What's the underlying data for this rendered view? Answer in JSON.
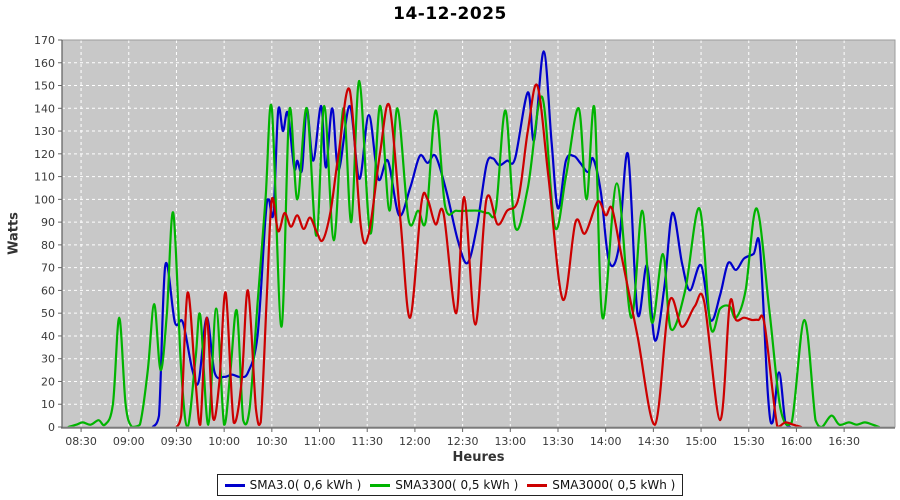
{
  "title": "14-12-2025",
  "axes": {
    "y_label": "Watts",
    "x_label": "Heures",
    "y_min": 0,
    "y_max": 170,
    "y_step": 10,
    "x_ticks": [
      "08:30",
      "09:00",
      "09:30",
      "10:00",
      "10:30",
      "11:00",
      "11:30",
      "12:00",
      "12:30",
      "13:00",
      "13:30",
      "14:00",
      "14:30",
      "15:00",
      "15:30",
      "16:00",
      "16:30"
    ],
    "x_start": "08:18",
    "x_end": "17:02"
  },
  "style": {
    "plot_bg": "#c8c8c8",
    "grid_color": "#ffffff",
    "axis_color": "#666666",
    "frame_color": "#9b9b9b",
    "tick_label_color": "#3a3a3a"
  },
  "chart_data": {
    "type": "line",
    "title": "14-12-2025",
    "xlabel": "Heures",
    "ylabel": "Watts",
    "ylim": [
      0,
      170
    ],
    "x_unit": "time_hh_mm",
    "grid": true,
    "legend_position": "bottom",
    "series": [
      {
        "key": "sma30",
        "name": "SMA3.0( 0,6 kWh )",
        "color": "#0000cc",
        "points": [
          [
            "09:15",
            0
          ],
          [
            "09:19",
            5
          ],
          [
            "09:23",
            71
          ],
          [
            "09:29",
            46
          ],
          [
            "09:34",
            46
          ],
          [
            "09:40",
            25
          ],
          [
            "09:44",
            20
          ],
          [
            "09:49",
            48
          ],
          [
            "09:54",
            24
          ],
          [
            "10:00",
            22
          ],
          [
            "10:05",
            23
          ],
          [
            "10:10",
            22
          ],
          [
            "10:15",
            24
          ],
          [
            "10:21",
            40
          ],
          [
            "10:26",
            92
          ],
          [
            "10:28",
            100
          ],
          [
            "10:31",
            94
          ],
          [
            "10:34",
            139
          ],
          [
            "10:37",
            130
          ],
          [
            "10:40",
            138
          ],
          [
            "10:44",
            114
          ],
          [
            "10:46",
            117
          ],
          [
            "10:49",
            113
          ],
          [
            "10:52",
            140
          ],
          [
            "10:56",
            117
          ],
          [
            "11:01",
            141
          ],
          [
            "11:04",
            114
          ],
          [
            "11:08",
            140
          ],
          [
            "11:12",
            113
          ],
          [
            "11:19",
            141
          ],
          [
            "11:25",
            109
          ],
          [
            "11:31",
            137
          ],
          [
            "11:37",
            109
          ],
          [
            "11:43",
            117
          ],
          [
            "11:50",
            93
          ],
          [
            "11:57",
            105
          ],
          [
            "12:03",
            119
          ],
          [
            "12:08",
            116
          ],
          [
            "12:13",
            119
          ],
          [
            "12:20",
            103
          ],
          [
            "12:27",
            82
          ],
          [
            "12:33",
            72
          ],
          [
            "12:39",
            88
          ],
          [
            "12:45",
            115
          ],
          [
            "12:49",
            118
          ],
          [
            "12:53",
            115
          ],
          [
            "12:58",
            117
          ],
          [
            "13:03",
            118
          ],
          [
            "13:11",
            147
          ],
          [
            "13:15",
            126
          ],
          [
            "13:21",
            165
          ],
          [
            "13:26",
            125
          ],
          [
            "13:30",
            96
          ],
          [
            "13:35",
            117
          ],
          [
            "13:40",
            119
          ],
          [
            "13:44",
            116
          ],
          [
            "13:49",
            112
          ],
          [
            "13:52",
            118
          ],
          [
            "13:57",
            103
          ],
          [
            "14:02",
            73
          ],
          [
            "14:08",
            78
          ],
          [
            "14:14",
            120
          ],
          [
            "14:20",
            50
          ],
          [
            "14:26",
            71
          ],
          [
            "14:31",
            38
          ],
          [
            "14:37",
            62
          ],
          [
            "14:42",
            94
          ],
          [
            "14:48",
            72
          ],
          [
            "14:53",
            60
          ],
          [
            "15:00",
            71
          ],
          [
            "15:06",
            47
          ],
          [
            "15:12",
            58
          ],
          [
            "15:17",
            72
          ],
          [
            "15:22",
            69
          ],
          [
            "15:27",
            74
          ],
          [
            "15:33",
            76
          ],
          [
            "15:37",
            79
          ],
          [
            "15:42",
            15
          ],
          [
            "15:45",
            2
          ],
          [
            "15:49",
            24
          ],
          [
            "15:53",
            2
          ],
          [
            "15:56",
            0
          ]
        ]
      },
      {
        "key": "sma3300",
        "name": "SMA3300( 0,5 kWh )",
        "color": "#00b400",
        "points": [
          [
            "08:22",
            0
          ],
          [
            "08:27",
            1
          ],
          [
            "08:31",
            2
          ],
          [
            "08:36",
            1
          ],
          [
            "08:41",
            3
          ],
          [
            "08:45",
            1
          ],
          [
            "08:50",
            10
          ],
          [
            "08:54",
            48
          ],
          [
            "08:58",
            10
          ],
          [
            "09:02",
            0
          ],
          [
            "09:07",
            1
          ],
          [
            "09:12",
            25
          ],
          [
            "09:16",
            54
          ],
          [
            "09:20",
            25
          ],
          [
            "09:24",
            50
          ],
          [
            "09:28",
            94
          ],
          [
            "09:33",
            25
          ],
          [
            "09:37",
            0
          ],
          [
            "09:42",
            30
          ],
          [
            "09:45",
            49
          ],
          [
            "09:50",
            1
          ],
          [
            "09:55",
            52
          ],
          [
            "10:00",
            1
          ],
          [
            "10:04",
            25
          ],
          [
            "10:08",
            51
          ],
          [
            "10:12",
            3
          ],
          [
            "10:16",
            8
          ],
          [
            "10:21",
            54
          ],
          [
            "10:26",
            100
          ],
          [
            "10:30",
            140
          ],
          [
            "10:36",
            44
          ],
          [
            "10:41",
            139
          ],
          [
            "10:46",
            100
          ],
          [
            "10:52",
            140
          ],
          [
            "10:58",
            84
          ],
          [
            "11:03",
            141
          ],
          [
            "11:09",
            82
          ],
          [
            "11:15",
            140
          ],
          [
            "11:20",
            90
          ],
          [
            "11:25",
            152
          ],
          [
            "11:32",
            85
          ],
          [
            "11:38",
            141
          ],
          [
            "11:44",
            95
          ],
          [
            "11:49",
            140
          ],
          [
            "11:56",
            91
          ],
          [
            "12:02",
            95
          ],
          [
            "12:07",
            91
          ],
          [
            "12:13",
            139
          ],
          [
            "12:19",
            97
          ],
          [
            "12:26",
            95
          ],
          [
            "12:33",
            95
          ],
          [
            "12:40",
            95
          ],
          [
            "12:46",
            94
          ],
          [
            "12:51",
            96
          ],
          [
            "12:57",
            139
          ],
          [
            "13:03",
            88
          ],
          [
            "13:11",
            105
          ],
          [
            "13:20",
            145
          ],
          [
            "13:28",
            88
          ],
          [
            "13:35",
            110
          ],
          [
            "13:43",
            140
          ],
          [
            "13:48",
            100
          ],
          [
            "13:53",
            140
          ],
          [
            "13:58",
            48
          ],
          [
            "14:07",
            107
          ],
          [
            "14:16",
            48
          ],
          [
            "14:23",
            95
          ],
          [
            "14:29",
            46
          ],
          [
            "14:36",
            76
          ],
          [
            "14:41",
            43
          ],
          [
            "14:50",
            60
          ],
          [
            "14:59",
            96
          ],
          [
            "15:06",
            44
          ],
          [
            "15:12",
            52
          ],
          [
            "15:18",
            53
          ],
          [
            "15:22",
            48
          ],
          [
            "15:28",
            60
          ],
          [
            "15:35",
            96
          ],
          [
            "15:43",
            51
          ],
          [
            "15:50",
            8
          ],
          [
            "15:57",
            2
          ],
          [
            "16:05",
            47
          ],
          [
            "16:12",
            3
          ],
          [
            "16:16",
            0
          ],
          [
            "16:22",
            5
          ],
          [
            "16:27",
            1
          ],
          [
            "16:33",
            2
          ],
          [
            "16:38",
            1
          ],
          [
            "16:43",
            2
          ],
          [
            "16:48",
            1
          ],
          [
            "16:52",
            0
          ]
        ]
      },
      {
        "key": "sma3000",
        "name": "SMA3000( 0,5 kWh )",
        "color": "#cc0000",
        "points": [
          [
            "09:30",
            0
          ],
          [
            "09:33",
            5
          ],
          [
            "09:37",
            59
          ],
          [
            "09:42",
            20
          ],
          [
            "09:45",
            1
          ],
          [
            "09:49",
            48
          ],
          [
            "09:53",
            4
          ],
          [
            "09:57",
            20
          ],
          [
            "10:01",
            59
          ],
          [
            "10:06",
            2
          ],
          [
            "10:11",
            20
          ],
          [
            "10:15",
            60
          ],
          [
            "10:20",
            8
          ],
          [
            "10:23",
            2
          ],
          [
            "10:27",
            60
          ],
          [
            "10:30",
            100
          ],
          [
            "10:34",
            86
          ],
          [
            "10:38",
            94
          ],
          [
            "10:42",
            88
          ],
          [
            "10:46",
            93
          ],
          [
            "10:50",
            87
          ],
          [
            "10:54",
            92
          ],
          [
            "10:58",
            86
          ],
          [
            "11:02",
            82
          ],
          [
            "11:07",
            95
          ],
          [
            "11:12",
            120
          ],
          [
            "11:19",
            148
          ],
          [
            "11:26",
            88
          ],
          [
            "11:31",
            85
          ],
          [
            "11:38",
            120
          ],
          [
            "11:44",
            141
          ],
          [
            "11:51",
            90
          ],
          [
            "11:57",
            48
          ],
          [
            "12:04",
            98
          ],
          [
            "12:08",
            100
          ],
          [
            "12:13",
            89
          ],
          [
            "12:18",
            94
          ],
          [
            "12:26",
            50
          ],
          [
            "12:31",
            101
          ],
          [
            "12:38",
            45
          ],
          [
            "12:45",
            100
          ],
          [
            "12:52",
            89
          ],
          [
            "12:58",
            95
          ],
          [
            "13:05",
            100
          ],
          [
            "13:11",
            130
          ],
          [
            "13:17",
            150
          ],
          [
            "13:24",
            110
          ],
          [
            "13:33",
            56
          ],
          [
            "13:41",
            90
          ],
          [
            "13:47",
            85
          ],
          [
            "13:55",
            99
          ],
          [
            "14:00",
            93
          ],
          [
            "14:04",
            96
          ],
          [
            "14:10",
            75
          ],
          [
            "14:20",
            40
          ],
          [
            "14:31",
            1
          ],
          [
            "14:40",
            55
          ],
          [
            "14:48",
            44
          ],
          [
            "14:56",
            53
          ],
          [
            "15:02",
            55
          ],
          [
            "15:12",
            3
          ],
          [
            "15:18",
            54
          ],
          [
            "15:22",
            47
          ],
          [
            "15:27",
            48
          ],
          [
            "15:32",
            47
          ],
          [
            "15:36",
            47
          ],
          [
            "15:40",
            45
          ],
          [
            "15:48",
            0
          ],
          [
            "15:53",
            2
          ],
          [
            "15:58",
            1
          ],
          [
            "16:03",
            0
          ]
        ]
      }
    ]
  }
}
